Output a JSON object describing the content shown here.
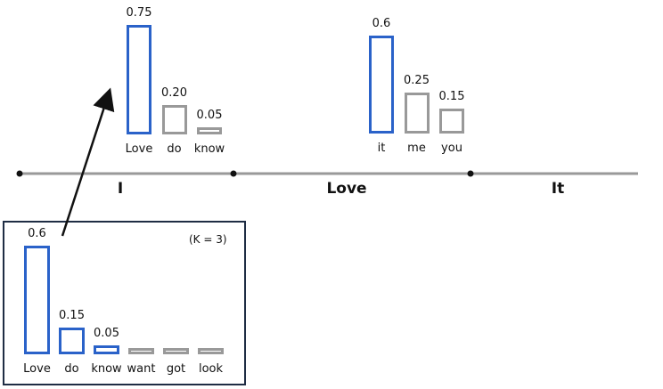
{
  "colors": {
    "top_k": "#2a62c9",
    "other": "#999999",
    "axis": "#999999",
    "frame": "#1f2d44"
  },
  "tokens": [
    "I",
    "Love",
    "It"
  ],
  "groups": [
    {
      "name": "after-i",
      "bars": [
        {
          "label": "Love",
          "value_label": "0.75",
          "value": 0.75,
          "top_k": true
        },
        {
          "label": "do",
          "value_label": "0.20",
          "value": 0.2,
          "top_k": false
        },
        {
          "label": "know",
          "value_label": "0.05",
          "value": 0.05,
          "top_k": false
        }
      ]
    },
    {
      "name": "after-love",
      "bars": [
        {
          "label": "it",
          "value_label": "0.6",
          "value": 0.6,
          "top_k": true
        },
        {
          "label": "me",
          "value_label": "0.25",
          "value": 0.25,
          "top_k": false
        },
        {
          "label": "you",
          "value_label": "0.15",
          "value": 0.15,
          "top_k": false
        }
      ]
    }
  ],
  "inset": {
    "note": "(K = 3)",
    "bars": [
      {
        "label": "Love",
        "value_label": "0.6",
        "value": 0.6,
        "top_k": true
      },
      {
        "label": "do",
        "value_label": "0.15",
        "value": 0.15,
        "top_k": true
      },
      {
        "label": "know",
        "value_label": "0.05",
        "value": 0.05,
        "top_k": true
      },
      {
        "label": "want",
        "value_label": "",
        "value": 0.0,
        "top_k": false
      },
      {
        "label": "got",
        "value_label": "",
        "value": 0.0,
        "top_k": false
      },
      {
        "label": "look",
        "value_label": "",
        "value": 0.0,
        "top_k": false
      }
    ]
  }
}
